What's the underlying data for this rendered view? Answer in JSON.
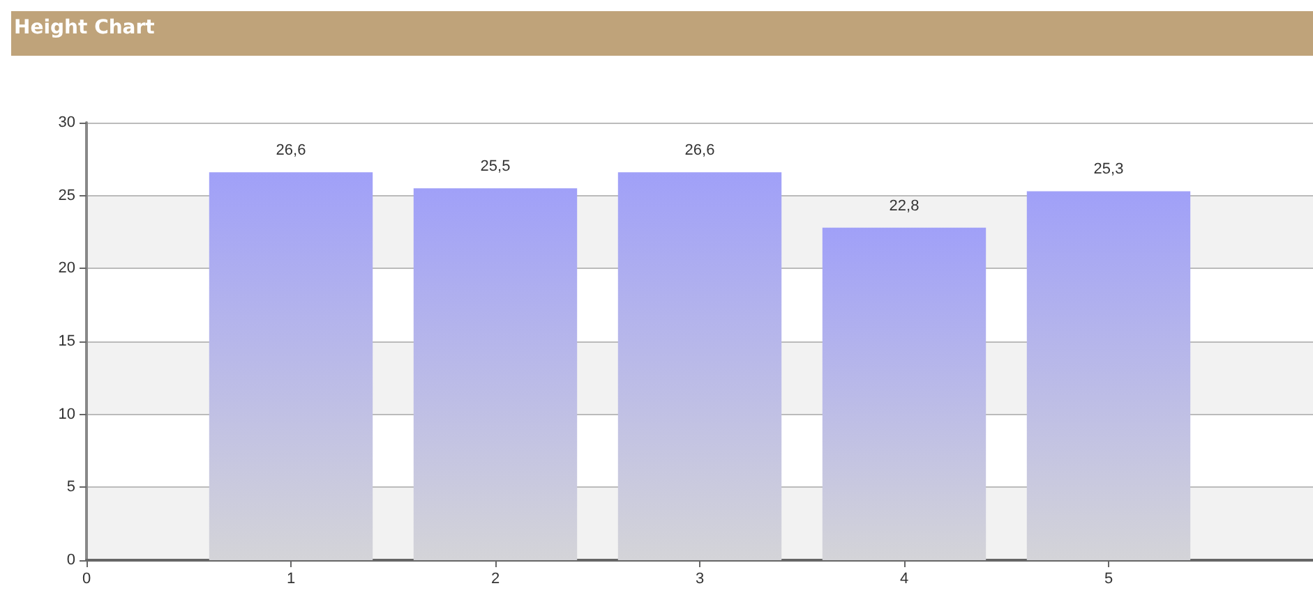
{
  "chart_data": {
    "type": "bar",
    "title": "Height Chart",
    "x": [
      1,
      2,
      3,
      4,
      5
    ],
    "values": [
      26.6,
      25.5,
      26.6,
      22.8,
      25.3
    ],
    "value_labels": [
      "26,6",
      "25,5",
      "26,6",
      "22,8",
      "25,3"
    ],
    "color": "#a0a0f8",
    "xlim": [
      0,
      6
    ],
    "xticks": [
      0,
      1,
      2,
      3,
      4,
      5
    ],
    "ylim": [
      0,
      30
    ],
    "yticks": [
      0,
      5,
      10,
      15,
      20,
      25,
      30
    ],
    "grid": "y"
  }
}
